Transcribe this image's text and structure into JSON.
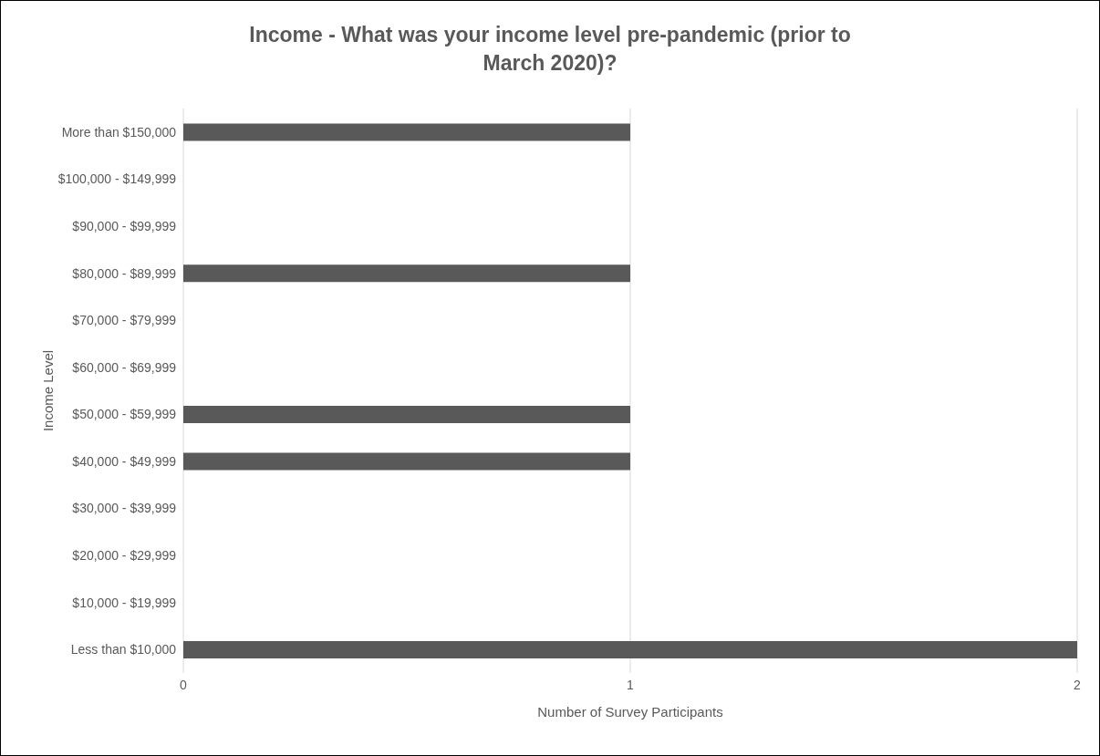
{
  "chart_data": {
    "type": "bar",
    "orientation": "horizontal",
    "title": "Income - What was your income level pre-pandemic (prior to March 2020)?",
    "xlabel": "Number of Survey Participants",
    "ylabel": "Income Level",
    "categories": [
      "More than $150,000",
      "$100,000 - $149,999",
      "$90,000 - $99,999",
      "$80,000 - $89,999",
      "$70,000 - $79,999",
      "$60,000 - $69,999",
      "$50,000 - $59,999",
      "$40,000 - $49,999",
      "$30,000 - $39,999",
      "$20,000 - $29,999",
      "$10,000 - $19,999",
      "Less than $10,000"
    ],
    "values": [
      1,
      0,
      0,
      1,
      0,
      0,
      1,
      1,
      0,
      0,
      0,
      2
    ],
    "color": "#595959",
    "xlim": [
      0,
      2
    ],
    "xticks": [
      0,
      1,
      2
    ],
    "grid": "x"
  }
}
